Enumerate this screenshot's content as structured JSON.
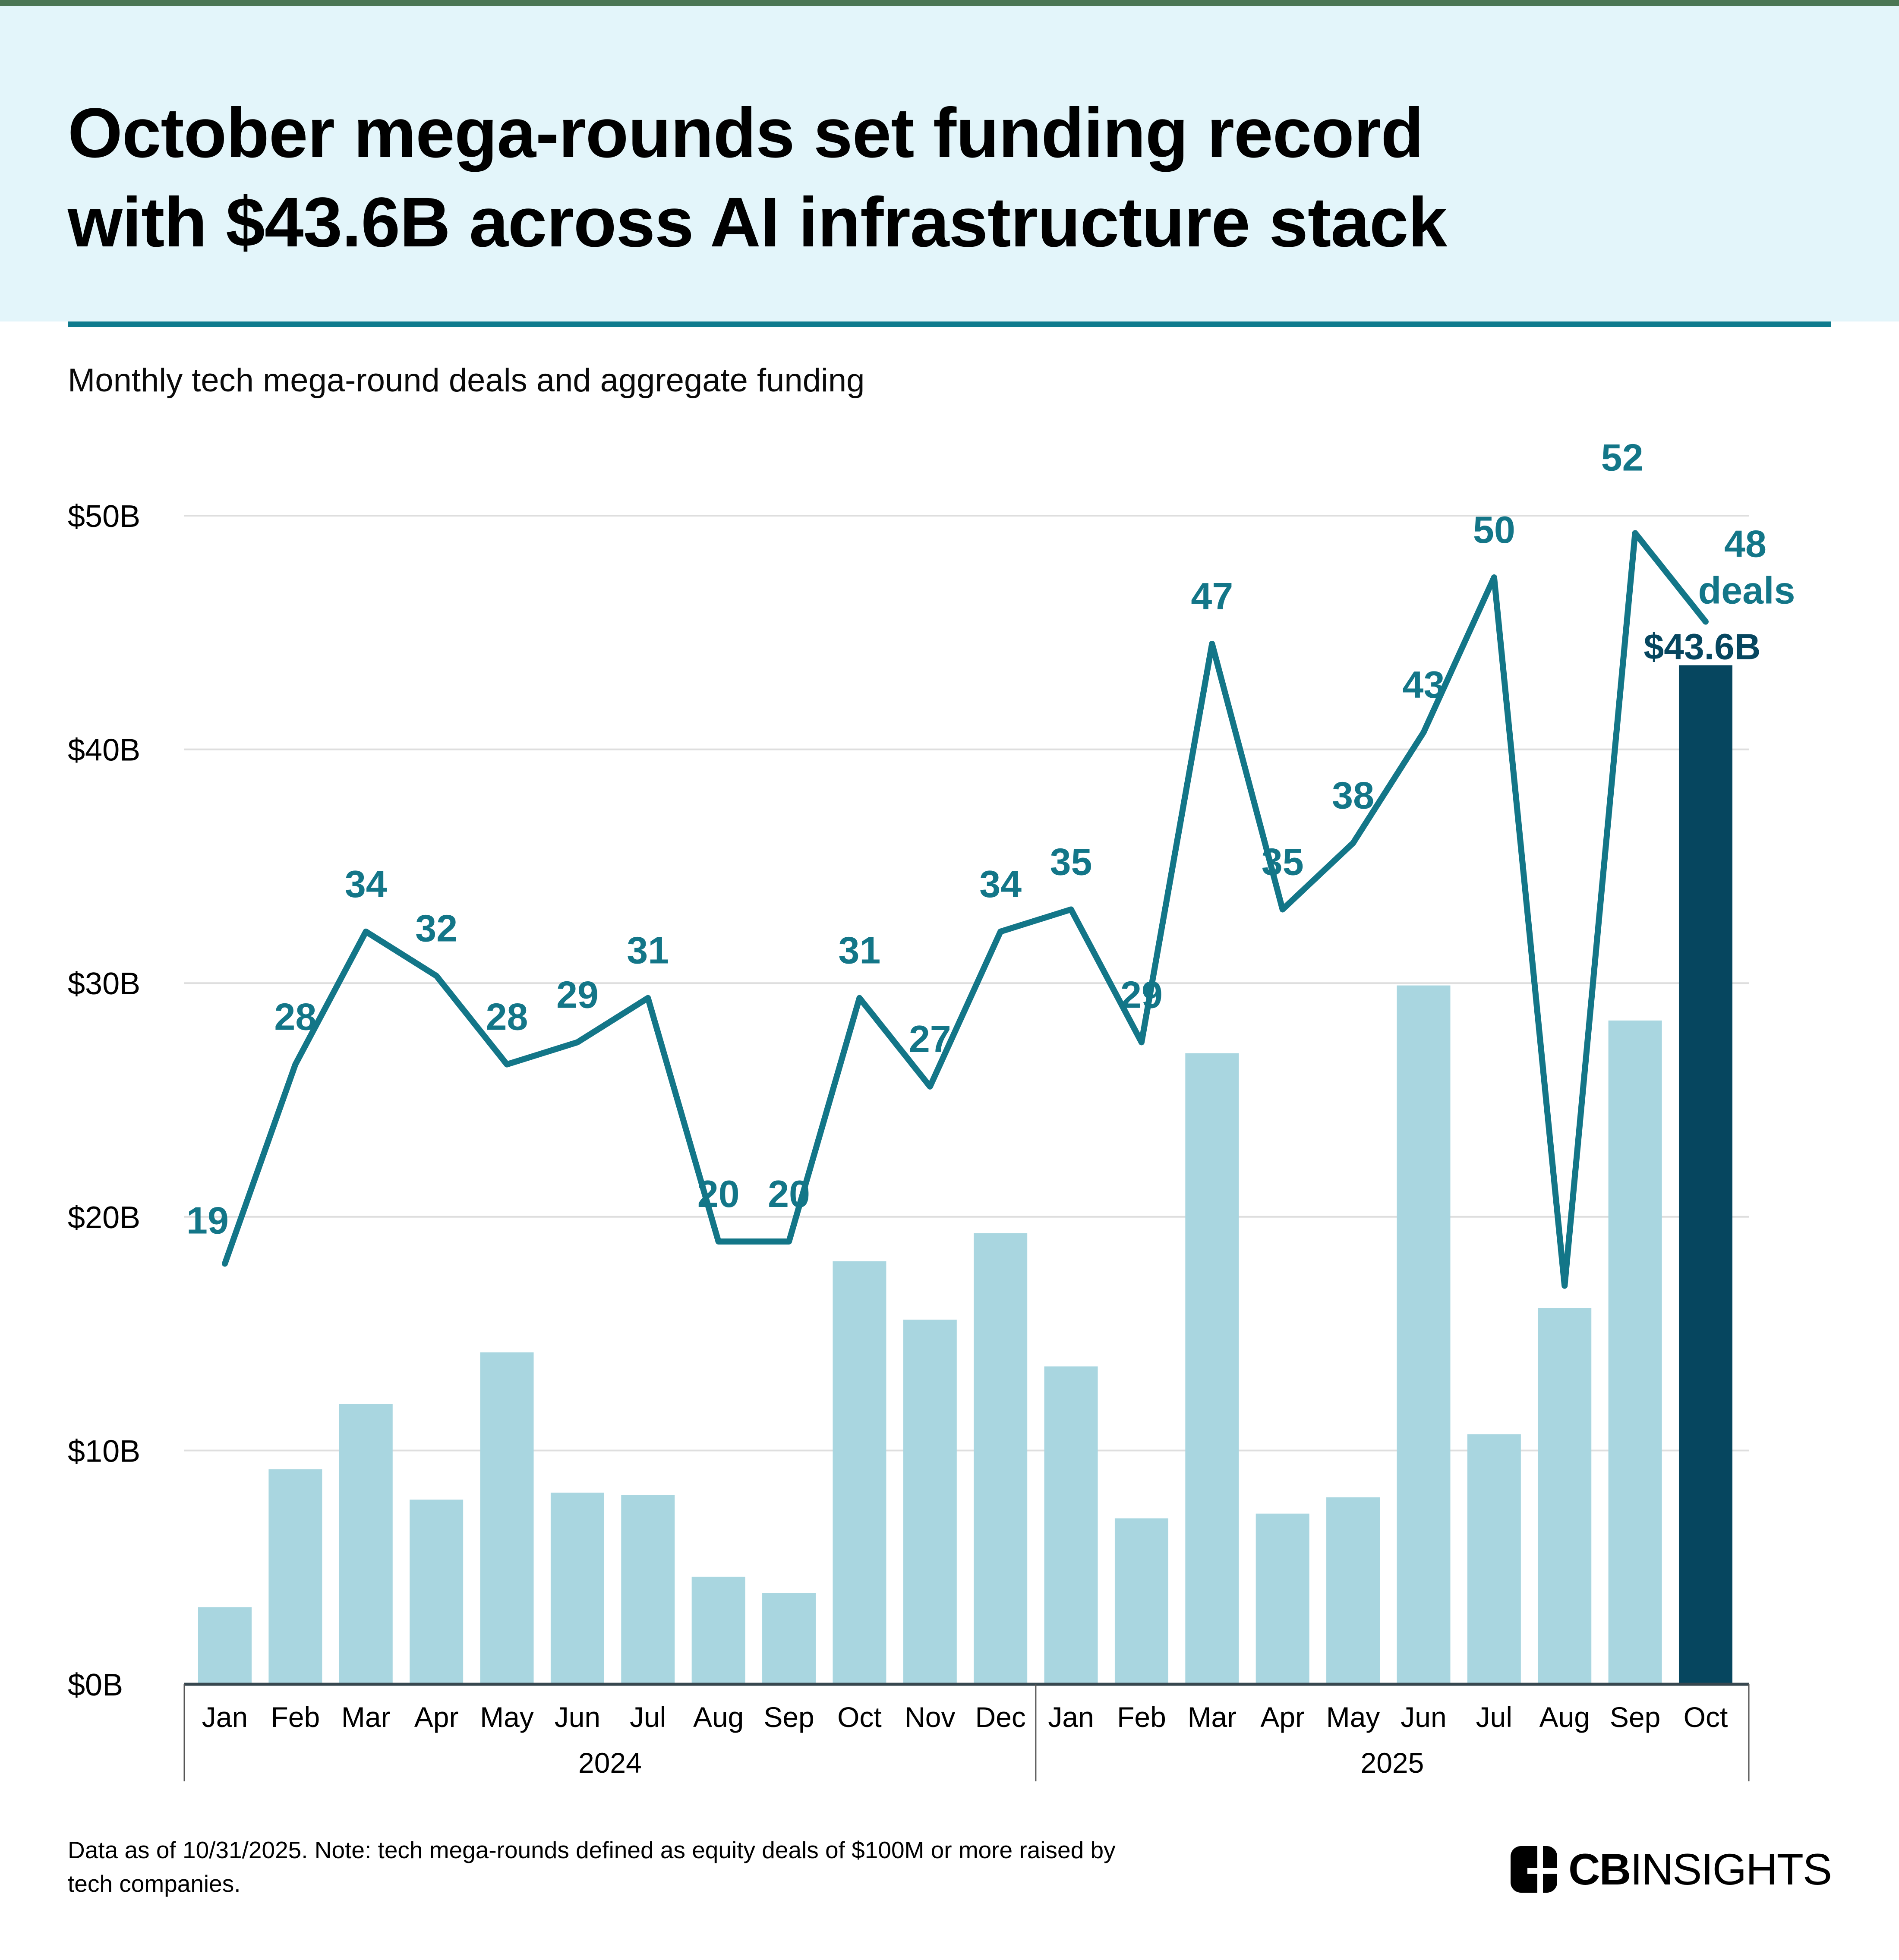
{
  "page": {
    "accent_strip_color": "#4b7654",
    "header_bg": "#e3f5fa",
    "divider_color": "#0f7b8e",
    "background": "#ffffff"
  },
  "header": {
    "title_line1": "October mega-rounds set funding record",
    "title_line2": "with $43.6B across AI infrastructure stack"
  },
  "subtitle": "Monthly tech mega-round deals and aggregate funding",
  "chart_data": {
    "type": "bar+line",
    "title": "Monthly tech mega-round deals and aggregate funding",
    "categories": [
      "Jan",
      "Feb",
      "Mar",
      "Apr",
      "May",
      "Jun",
      "Jul",
      "Aug",
      "Sep",
      "Oct",
      "Nov",
      "Dec",
      "Jan",
      "Feb",
      "Mar",
      "Apr",
      "May",
      "Jun",
      "Jul",
      "Aug",
      "Sep",
      "Oct"
    ],
    "year_groups": [
      {
        "label": "2024",
        "months": 12
      },
      {
        "label": "2025",
        "months": 10
      }
    ],
    "series": [
      {
        "name": "Aggregate funding ($B)",
        "type": "bar",
        "color": "#a9d6e0",
        "highlight_color": "#06465f",
        "highlight_index": 21,
        "values": [
          3.3,
          9.2,
          12.0,
          7.9,
          14.2,
          8.2,
          8.1,
          4.6,
          3.9,
          18.1,
          15.6,
          19.3,
          13.6,
          7.1,
          27.0,
          7.3,
          8.0,
          29.9,
          10.7,
          16.1,
          28.4,
          43.6
        ]
      },
      {
        "name": "Deals",
        "type": "line",
        "color": "#137688",
        "values": [
          19,
          28,
          34,
          32,
          28,
          29,
          31,
          20,
          20,
          31,
          27,
          34,
          35,
          29,
          47,
          35,
          38,
          43,
          50,
          18,
          52,
          48
        ],
        "labels": [
          "19",
          "28",
          "34",
          "32",
          "28",
          "29",
          "31",
          "20",
          "20",
          "31",
          "27",
          "34",
          "35",
          "29",
          "47",
          "35",
          "38",
          "43",
          "50",
          "",
          "52",
          "48"
        ]
      }
    ],
    "annotations": {
      "last_bar_label": "$43.6B",
      "last_point_unit": "deals"
    },
    "y_axis": {
      "ticks": [
        "$0B",
        "$10B",
        "$20B",
        "$30B",
        "$40B",
        "$50B"
      ],
      "min": 0,
      "max": 50,
      "gridlines": true,
      "grid_color": "#dedede",
      "axis_line_color": "#37474f",
      "box_border_color": "#555555",
      "tick_label_color": "#000000"
    },
    "legend_position": "none"
  },
  "footer": {
    "note_line1": "Data as of 10/31/2025. Note: tech mega-rounds defined as equity deals of $100M or more raised by",
    "note_line2": "tech companies.",
    "logo_text_bold": "CB",
    "logo_text_regular": "INSIGHTS"
  }
}
